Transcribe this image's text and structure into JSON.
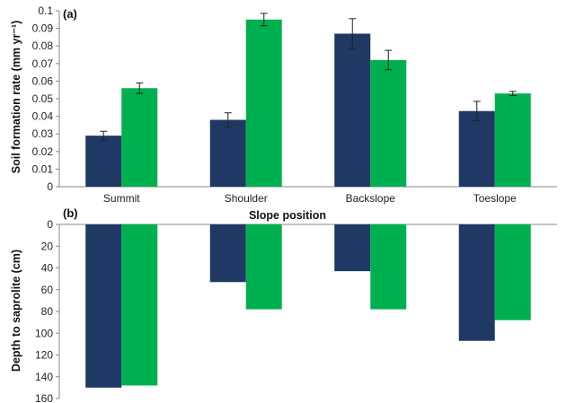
{
  "chart_data": [
    {
      "type": "bar",
      "panel_label": "(a)",
      "categories": [
        "Summit",
        "Shoulder",
        "Backslope",
        "Toeslope"
      ],
      "series": [
        {
          "values": [
            0.029,
            0.038,
            0.087,
            0.043
          ],
          "errors": [
            0.0025,
            0.004,
            0.0085,
            0.0055
          ],
          "color": "#1f3864"
        },
        {
          "values": [
            0.056,
            0.095,
            0.072,
            0.053
          ],
          "errors": [
            0.003,
            0.0035,
            0.0055,
            0.0012
          ],
          "color": "#00b050"
        }
      ],
      "ylabel": "Soil formation rate (mm yr⁻¹)",
      "xlabel": "Slope position",
      "ylim": [
        0,
        0.1
      ],
      "yticks": [
        "0",
        "0.01",
        "0.02",
        "0.03",
        "0.04",
        "0.05",
        "0.06",
        "0.07",
        "0.08",
        "0.09",
        "0.1"
      ],
      "grid": false
    },
    {
      "type": "bar",
      "panel_label": "(b)",
      "categories": [
        "Summit",
        "Shoulder",
        "Backslope",
        "Toeslope"
      ],
      "series": [
        {
          "values": [
            150,
            53,
            43,
            107
          ],
          "color": "#1f3864"
        },
        {
          "values": [
            148,
            78,
            78,
            88
          ],
          "color": "#00b050"
        }
      ],
      "ylabel": "Depth to saprolite (cm)",
      "ylim": [
        0,
        160
      ],
      "y_inverted": true,
      "yticks": [
        "0",
        "20",
        "40",
        "60",
        "80",
        "100",
        "120",
        "140",
        "160"
      ],
      "grid": false
    }
  ]
}
